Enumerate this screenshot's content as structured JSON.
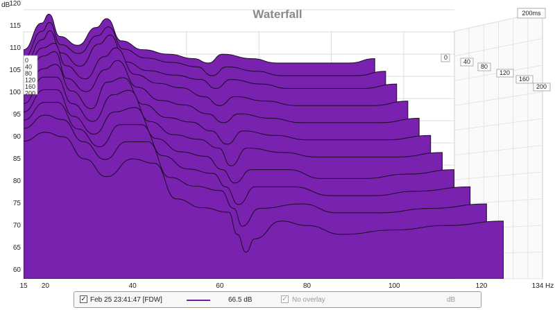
{
  "colors": {
    "fill": "#7a22b0",
    "stroke": "#1a0a22",
    "grid": "#dddddd",
    "accent": "#6a1e9e"
  },
  "chart_data": {
    "type": "area",
    "title": "Waterfall",
    "unit_label": "dB",
    "x_unit_label": "Hz",
    "ylim": [
      58,
      120
    ],
    "xlim": [
      15,
      134
    ],
    "yticks": [
      120,
      115,
      110,
      105,
      100,
      95,
      90,
      85,
      80,
      75,
      70,
      65,
      60
    ],
    "xticks": [
      15,
      20,
      40,
      60,
      80,
      100,
      120,
      134
    ],
    "time_axis_label": "200ms",
    "time_ticks": [
      "0",
      "40",
      "80",
      "120",
      "160",
      "200"
    ],
    "time_ticks_left": [
      "0",
      "40",
      "80",
      "120",
      "160",
      "200"
    ],
    "grid": true,
    "series": [
      {
        "t": 0,
        "x": [
          15,
          20,
          22,
          25,
          30,
          35,
          38,
          42,
          48,
          55,
          62,
          66,
          70,
          78,
          85,
          95,
          105,
          112
        ],
        "y": [
          101,
          107,
          109,
          104,
          102,
          106,
          108,
          103,
          101,
          100,
          99,
          98,
          100,
          99,
          98,
          98,
          98,
          99
        ]
      },
      {
        "t": 20,
        "x": [
          15,
          20,
          22,
          25,
          30,
          35,
          38,
          42,
          48,
          55,
          62,
          66,
          70,
          78,
          85,
          95,
          105,
          113
        ],
        "y": [
          100,
          106,
          108,
          103,
          101,
          105,
          107,
          102,
          100,
          99,
          98,
          96,
          98,
          97,
          96,
          96,
          96,
          97
        ]
      },
      {
        "t": 40,
        "x": [
          15,
          20,
          22,
          25,
          30,
          35,
          38,
          42,
          48,
          55,
          62,
          66,
          70,
          78,
          85,
          95,
          105,
          114
        ],
        "y": [
          99,
          105,
          107,
          102,
          99,
          104,
          106,
          100,
          98,
          97,
          96,
          94,
          96,
          95,
          94,
          94,
          94,
          95
        ]
      },
      {
        "t": 60,
        "x": [
          15,
          20,
          23,
          26,
          31,
          36,
          39,
          44,
          50,
          56,
          62,
          66,
          70,
          78,
          86,
          96,
          106,
          115
        ],
        "y": [
          98,
          104,
          105,
          100,
          97,
          102,
          104,
          98,
          96,
          95,
          93,
          91,
          93,
          92,
          91,
          91,
          91,
          92
        ]
      },
      {
        "t": 80,
        "x": [
          15,
          20,
          23,
          26,
          31,
          36,
          39,
          44,
          50,
          56,
          62,
          66,
          70,
          78,
          86,
          96,
          106,
          116
        ],
        "y": [
          97,
          103,
          104,
          98,
          95,
          100,
          102,
          96,
          93,
          92,
          90,
          88,
          90,
          89,
          88,
          88,
          88,
          89
        ]
      },
      {
        "t": 100,
        "x": [
          15,
          20,
          23,
          27,
          32,
          36,
          40,
          45,
          51,
          57,
          62,
          66,
          70,
          78,
          86,
          96,
          106,
          117
        ],
        "y": [
          96,
          101,
          102,
          96,
          92,
          98,
          99,
          93,
          90,
          89,
          87,
          84,
          87,
          86,
          85,
          85,
          85,
          86
        ]
      },
      {
        "t": 120,
        "x": [
          15,
          20,
          23,
          27,
          32,
          37,
          41,
          46,
          52,
          58,
          63,
          66,
          70,
          79,
          87,
          97,
          107,
          118
        ],
        "y": [
          94,
          100,
          100,
          94,
          90,
          96,
          97,
          90,
          87,
          86,
          84,
          80,
          84,
          83,
          82,
          82,
          82,
          83
        ]
      },
      {
        "t": 140,
        "x": [
          15,
          20,
          23,
          27,
          32,
          37,
          42,
          47,
          53,
          59,
          63,
          66,
          70,
          79,
          87,
          97,
          108,
          119
        ],
        "y": [
          93,
          98,
          98,
          92,
          88,
          93,
          94,
          87,
          84,
          83,
          80,
          77,
          80,
          80,
          78,
          78,
          79,
          80
        ]
      },
      {
        "t": 160,
        "x": [
          15,
          20,
          23,
          28,
          33,
          38,
          43,
          48,
          54,
          60,
          63,
          66,
          70,
          79,
          88,
          98,
          108,
          121
        ],
        "y": [
          92,
          96,
          96,
          90,
          86,
          91,
          91,
          84,
          81,
          80,
          77,
          73,
          77,
          77,
          75,
          75,
          76,
          77
        ]
      },
      {
        "t": 180,
        "x": [
          15,
          20,
          24,
          29,
          34,
          39,
          44,
          49,
          55,
          61,
          64,
          66,
          70,
          80,
          88,
          98,
          110,
          123
        ],
        "y": [
          91,
          94,
          93,
          88,
          84,
          88,
          88,
          80,
          78,
          77,
          73,
          69,
          73,
          74,
          72,
          72,
          73,
          74
        ]
      },
      {
        "t": 200,
        "x": [
          15,
          20,
          24,
          29,
          34,
          40,
          45,
          50,
          56,
          62,
          64,
          66,
          68,
          74,
          80,
          88,
          100,
          112,
          125
        ],
        "y": [
          89,
          91,
          90,
          85,
          81,
          85,
          84,
          76,
          74,
          73,
          68,
          64,
          67,
          71,
          70,
          68,
          69,
          70,
          71
        ]
      }
    ]
  },
  "legend": {
    "series_label": "Feb 25 23:41:47 [FDW]",
    "series_value": "66.5 dB",
    "overlay_label": "No overlay",
    "overlay_unit": "dB",
    "series_checked": true,
    "overlay_checked": true
  }
}
